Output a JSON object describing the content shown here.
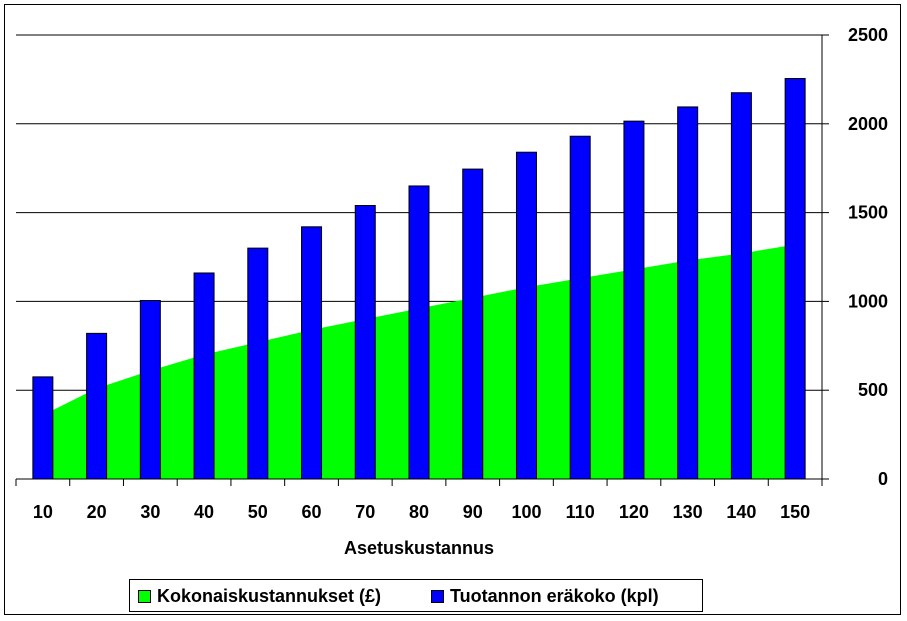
{
  "chart_data": {
    "type": "bar",
    "categories": [
      "10",
      "20",
      "30",
      "40",
      "50",
      "60",
      "70",
      "80",
      "90",
      "100",
      "110",
      "120",
      "130",
      "140",
      "150"
    ],
    "series": [
      {
        "name": "Kokonaiskustannukset (£)",
        "type": "area",
        "color": "#00ff00",
        "values": [
          360,
          510,
          610,
          700,
          770,
          840,
          900,
          960,
          1020,
          1080,
          1130,
          1180,
          1230,
          1270,
          1320
        ]
      },
      {
        "name": "Tuotannon eräkoko (kpl)",
        "type": "bar",
        "color": "#0000ff",
        "values": [
          575,
          820,
          1005,
          1160,
          1300,
          1420,
          1540,
          1650,
          1745,
          1840,
          1930,
          2015,
          2095,
          2175,
          2255
        ]
      }
    ],
    "xlabel": "Asetuskustannus",
    "ylabel": "",
    "title": "",
    "ylim": [
      0,
      2500
    ],
    "yticks": [
      "0",
      "500",
      "1000",
      "1500",
      "2000",
      "2500"
    ],
    "y_axis_side": "right",
    "grid": true,
    "legend": "bottom"
  }
}
